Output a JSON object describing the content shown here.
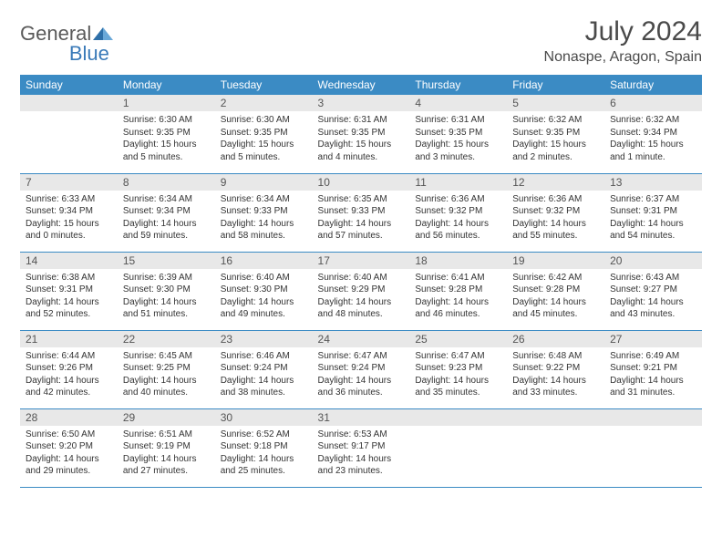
{
  "logo": {
    "part1": "General",
    "part2": "Blue"
  },
  "title": "July 2024",
  "location": "Nonaspe, Aragon, Spain",
  "colors": {
    "header_bg": "#3b8bc4",
    "header_text": "#ffffff",
    "daynum_bg": "#e8e8e8",
    "text": "#333333",
    "logo_blue": "#3a7ab8"
  },
  "weekdays": [
    "Sunday",
    "Monday",
    "Tuesday",
    "Wednesday",
    "Thursday",
    "Friday",
    "Saturday"
  ],
  "weeks": [
    [
      null,
      {
        "n": "1",
        "l1": "Sunrise: 6:30 AM",
        "l2": "Sunset: 9:35 PM",
        "l3": "Daylight: 15 hours",
        "l4": "and 5 minutes."
      },
      {
        "n": "2",
        "l1": "Sunrise: 6:30 AM",
        "l2": "Sunset: 9:35 PM",
        "l3": "Daylight: 15 hours",
        "l4": "and 5 minutes."
      },
      {
        "n": "3",
        "l1": "Sunrise: 6:31 AM",
        "l2": "Sunset: 9:35 PM",
        "l3": "Daylight: 15 hours",
        "l4": "and 4 minutes."
      },
      {
        "n": "4",
        "l1": "Sunrise: 6:31 AM",
        "l2": "Sunset: 9:35 PM",
        "l3": "Daylight: 15 hours",
        "l4": "and 3 minutes."
      },
      {
        "n": "5",
        "l1": "Sunrise: 6:32 AM",
        "l2": "Sunset: 9:35 PM",
        "l3": "Daylight: 15 hours",
        "l4": "and 2 minutes."
      },
      {
        "n": "6",
        "l1": "Sunrise: 6:32 AM",
        "l2": "Sunset: 9:34 PM",
        "l3": "Daylight: 15 hours",
        "l4": "and 1 minute."
      }
    ],
    [
      {
        "n": "7",
        "l1": "Sunrise: 6:33 AM",
        "l2": "Sunset: 9:34 PM",
        "l3": "Daylight: 15 hours",
        "l4": "and 0 minutes."
      },
      {
        "n": "8",
        "l1": "Sunrise: 6:34 AM",
        "l2": "Sunset: 9:34 PM",
        "l3": "Daylight: 14 hours",
        "l4": "and 59 minutes."
      },
      {
        "n": "9",
        "l1": "Sunrise: 6:34 AM",
        "l2": "Sunset: 9:33 PM",
        "l3": "Daylight: 14 hours",
        "l4": "and 58 minutes."
      },
      {
        "n": "10",
        "l1": "Sunrise: 6:35 AM",
        "l2": "Sunset: 9:33 PM",
        "l3": "Daylight: 14 hours",
        "l4": "and 57 minutes."
      },
      {
        "n": "11",
        "l1": "Sunrise: 6:36 AM",
        "l2": "Sunset: 9:32 PM",
        "l3": "Daylight: 14 hours",
        "l4": "and 56 minutes."
      },
      {
        "n": "12",
        "l1": "Sunrise: 6:36 AM",
        "l2": "Sunset: 9:32 PM",
        "l3": "Daylight: 14 hours",
        "l4": "and 55 minutes."
      },
      {
        "n": "13",
        "l1": "Sunrise: 6:37 AM",
        "l2": "Sunset: 9:31 PM",
        "l3": "Daylight: 14 hours",
        "l4": "and 54 minutes."
      }
    ],
    [
      {
        "n": "14",
        "l1": "Sunrise: 6:38 AM",
        "l2": "Sunset: 9:31 PM",
        "l3": "Daylight: 14 hours",
        "l4": "and 52 minutes."
      },
      {
        "n": "15",
        "l1": "Sunrise: 6:39 AM",
        "l2": "Sunset: 9:30 PM",
        "l3": "Daylight: 14 hours",
        "l4": "and 51 minutes."
      },
      {
        "n": "16",
        "l1": "Sunrise: 6:40 AM",
        "l2": "Sunset: 9:30 PM",
        "l3": "Daylight: 14 hours",
        "l4": "and 49 minutes."
      },
      {
        "n": "17",
        "l1": "Sunrise: 6:40 AM",
        "l2": "Sunset: 9:29 PM",
        "l3": "Daylight: 14 hours",
        "l4": "and 48 minutes."
      },
      {
        "n": "18",
        "l1": "Sunrise: 6:41 AM",
        "l2": "Sunset: 9:28 PM",
        "l3": "Daylight: 14 hours",
        "l4": "and 46 minutes."
      },
      {
        "n": "19",
        "l1": "Sunrise: 6:42 AM",
        "l2": "Sunset: 9:28 PM",
        "l3": "Daylight: 14 hours",
        "l4": "and 45 minutes."
      },
      {
        "n": "20",
        "l1": "Sunrise: 6:43 AM",
        "l2": "Sunset: 9:27 PM",
        "l3": "Daylight: 14 hours",
        "l4": "and 43 minutes."
      }
    ],
    [
      {
        "n": "21",
        "l1": "Sunrise: 6:44 AM",
        "l2": "Sunset: 9:26 PM",
        "l3": "Daylight: 14 hours",
        "l4": "and 42 minutes."
      },
      {
        "n": "22",
        "l1": "Sunrise: 6:45 AM",
        "l2": "Sunset: 9:25 PM",
        "l3": "Daylight: 14 hours",
        "l4": "and 40 minutes."
      },
      {
        "n": "23",
        "l1": "Sunrise: 6:46 AM",
        "l2": "Sunset: 9:24 PM",
        "l3": "Daylight: 14 hours",
        "l4": "and 38 minutes."
      },
      {
        "n": "24",
        "l1": "Sunrise: 6:47 AM",
        "l2": "Sunset: 9:24 PM",
        "l3": "Daylight: 14 hours",
        "l4": "and 36 minutes."
      },
      {
        "n": "25",
        "l1": "Sunrise: 6:47 AM",
        "l2": "Sunset: 9:23 PM",
        "l3": "Daylight: 14 hours",
        "l4": "and 35 minutes."
      },
      {
        "n": "26",
        "l1": "Sunrise: 6:48 AM",
        "l2": "Sunset: 9:22 PM",
        "l3": "Daylight: 14 hours",
        "l4": "and 33 minutes."
      },
      {
        "n": "27",
        "l1": "Sunrise: 6:49 AM",
        "l2": "Sunset: 9:21 PM",
        "l3": "Daylight: 14 hours",
        "l4": "and 31 minutes."
      }
    ],
    [
      {
        "n": "28",
        "l1": "Sunrise: 6:50 AM",
        "l2": "Sunset: 9:20 PM",
        "l3": "Daylight: 14 hours",
        "l4": "and 29 minutes."
      },
      {
        "n": "29",
        "l1": "Sunrise: 6:51 AM",
        "l2": "Sunset: 9:19 PM",
        "l3": "Daylight: 14 hours",
        "l4": "and 27 minutes."
      },
      {
        "n": "30",
        "l1": "Sunrise: 6:52 AM",
        "l2": "Sunset: 9:18 PM",
        "l3": "Daylight: 14 hours",
        "l4": "and 25 minutes."
      },
      {
        "n": "31",
        "l1": "Sunrise: 6:53 AM",
        "l2": "Sunset: 9:17 PM",
        "l3": "Daylight: 14 hours",
        "l4": "and 23 minutes."
      },
      null,
      null,
      null
    ]
  ]
}
